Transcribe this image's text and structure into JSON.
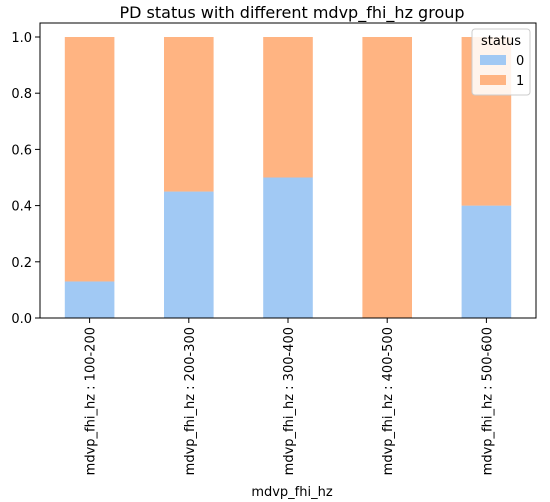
{
  "chart_data": {
    "type": "bar",
    "stacked": true,
    "title": "PD status with different mdvp_fhi_hz group",
    "xlabel": "mdvp_fhi_hz",
    "ylabel": "",
    "ylim": [
      0,
      1.0
    ],
    "yticks": [
      "0.0",
      "0.2",
      "0.4",
      "0.6",
      "0.8",
      "1.0"
    ],
    "categories": [
      "mdvp_fhi_hz : 100-200",
      "mdvp_fhi_hz : 200-300",
      "mdvp_fhi_hz : 300-400",
      "mdvp_fhi_hz : 400-500",
      "mdvp_fhi_hz : 500-600"
    ],
    "series": [
      {
        "name": "0",
        "color": "#a1c9f4",
        "values": [
          0.13,
          0.45,
          0.5,
          0.0,
          0.4
        ]
      },
      {
        "name": "1",
        "color": "#ffb482",
        "values": [
          0.87,
          0.55,
          0.5,
          1.0,
          0.6
        ]
      }
    ],
    "legend": {
      "title": "status",
      "position": "top-right"
    },
    "grid": false
  }
}
